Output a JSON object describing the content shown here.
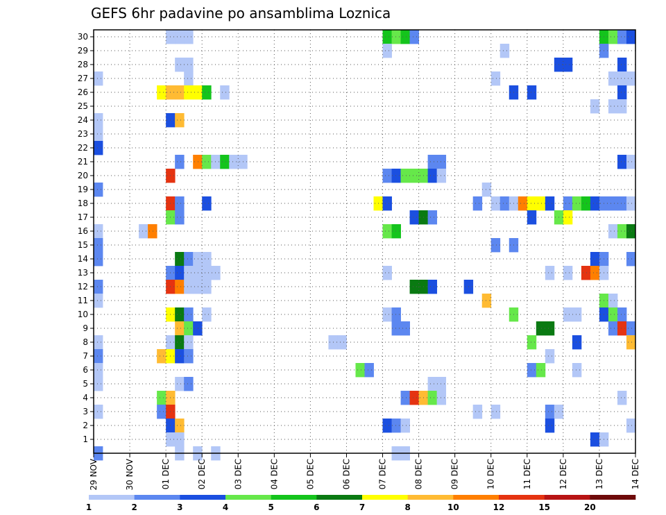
{
  "chart_data": {
    "type": "heatmap",
    "title": "GEFS 6hr padavine po ansamblima Loznica",
    "xlabel": "",
    "ylabel": "",
    "x_ticks": [
      "29 NOV",
      "30 NOV",
      "01 DEC",
      "02 DEC",
      "03 DEC",
      "04 DEC",
      "05 DEC",
      "06 DEC",
      "07 DEC",
      "08 DEC",
      "09 DEC",
      "10 DEC",
      "11 DEC",
      "12 DEC",
      "13 DEC",
      "14 DEC"
    ],
    "y_ticks": [
      "1",
      "2",
      "3",
      "4",
      "5",
      "6",
      "7",
      "8",
      "9",
      "10",
      "11",
      "12",
      "13",
      "14",
      "15",
      "16",
      "17",
      "18",
      "19",
      "20",
      "21",
      "22",
      "23",
      "24",
      "25",
      "26",
      "27",
      "28",
      "29",
      "30"
    ],
    "xlim": [
      0,
      60
    ],
    "ylim": [
      0,
      30
    ],
    "x_unit": "6-hour steps from 29 NOV 00Z",
    "grid": true,
    "colorbar": {
      "labels": [
        "1",
        "2",
        "3",
        "4",
        "5",
        "6",
        "7",
        "8",
        "10",
        "12",
        "15",
        "20"
      ],
      "colors": [
        "#b3c7f7",
        "#5c87f0",
        "#1b4fe0",
        "#66e84a",
        "#14c41c",
        "#0a7a12",
        "#ffff00",
        "#ffbb33",
        "#ff7f00",
        "#e53311",
        "#b81414",
        "#6e0a0a"
      ]
    },
    "cells": [
      [
        30,
        8,
        0
      ],
      [
        30,
        9,
        0
      ],
      [
        30,
        10,
        0
      ],
      [
        30,
        32,
        4
      ],
      [
        30,
        33,
        3
      ],
      [
        30,
        34,
        4
      ],
      [
        30,
        35,
        1
      ],
      [
        30,
        56,
        4
      ],
      [
        30,
        57,
        3
      ],
      [
        30,
        58,
        1
      ],
      [
        30,
        59,
        2
      ],
      [
        29,
        32,
        0
      ],
      [
        29,
        45,
        0
      ],
      [
        29,
        56,
        1
      ],
      [
        28,
        9,
        0
      ],
      [
        28,
        10,
        0
      ],
      [
        28,
        51,
        2
      ],
      [
        28,
        52,
        2
      ],
      [
        28,
        58,
        2
      ],
      [
        27,
        0,
        0
      ],
      [
        27,
        10,
        0
      ],
      [
        27,
        44,
        0
      ],
      [
        27,
        57,
        0
      ],
      [
        27,
        58,
        0
      ],
      [
        27,
        59,
        0
      ],
      [
        26,
        7,
        6
      ],
      [
        26,
        8,
        7
      ],
      [
        26,
        9,
        7
      ],
      [
        26,
        10,
        6
      ],
      [
        26,
        11,
        6
      ],
      [
        26,
        12,
        4
      ],
      [
        26,
        14,
        0
      ],
      [
        26,
        46,
        2
      ],
      [
        26,
        48,
        2
      ],
      [
        26,
        58,
        2
      ],
      [
        25,
        55,
        0
      ],
      [
        25,
        57,
        0
      ],
      [
        25,
        58,
        0
      ],
      [
        24,
        0,
        0
      ],
      [
        24,
        8,
        2
      ],
      [
        24,
        9,
        7
      ],
      [
        23,
        0,
        0
      ],
      [
        22,
        0,
        2
      ],
      [
        21,
        9,
        1
      ],
      [
        21,
        11,
        8
      ],
      [
        21,
        12,
        3
      ],
      [
        21,
        13,
        0
      ],
      [
        21,
        14,
        4
      ],
      [
        21,
        15,
        0
      ],
      [
        21,
        16,
        0
      ],
      [
        21,
        37,
        1
      ],
      [
        21,
        38,
        1
      ],
      [
        21,
        58,
        2
      ],
      [
        21,
        59,
        0
      ],
      [
        20,
        8,
        9
      ],
      [
        20,
        32,
        1
      ],
      [
        20,
        33,
        2
      ],
      [
        20,
        34,
        3
      ],
      [
        20,
        35,
        3
      ],
      [
        20,
        36,
        3
      ],
      [
        20,
        37,
        2
      ],
      [
        20,
        38,
        0
      ],
      [
        19,
        0,
        1
      ],
      [
        19,
        43,
        0
      ],
      [
        18,
        8,
        9
      ],
      [
        18,
        9,
        1
      ],
      [
        18,
        12,
        2
      ],
      [
        18,
        31,
        6
      ],
      [
        18,
        32,
        2
      ],
      [
        18,
        42,
        1
      ],
      [
        18,
        44,
        0
      ],
      [
        18,
        45,
        1
      ],
      [
        18,
        46,
        0
      ],
      [
        18,
        47,
        8
      ],
      [
        18,
        48,
        6
      ],
      [
        18,
        49,
        6
      ],
      [
        18,
        50,
        2
      ],
      [
        18,
        52,
        1
      ],
      [
        18,
        53,
        3
      ],
      [
        18,
        54,
        4
      ],
      [
        18,
        55,
        2
      ],
      [
        18,
        56,
        1
      ],
      [
        18,
        57,
        1
      ],
      [
        18,
        58,
        1
      ],
      [
        18,
        59,
        0
      ],
      [
        17,
        8,
        3
      ],
      [
        17,
        9,
        1
      ],
      [
        17,
        35,
        2
      ],
      [
        17,
        36,
        5
      ],
      [
        17,
        37,
        1
      ],
      [
        17,
        48,
        2
      ],
      [
        17,
        51,
        3
      ],
      [
        17,
        52,
        6
      ],
      [
        16,
        0,
        0
      ],
      [
        16,
        5,
        0
      ],
      [
        16,
        6,
        8
      ],
      [
        16,
        32,
        3
      ],
      [
        16,
        33,
        4
      ],
      [
        16,
        57,
        0
      ],
      [
        16,
        58,
        3
      ],
      [
        16,
        59,
        5
      ],
      [
        15,
        0,
        1
      ],
      [
        15,
        44,
        1
      ],
      [
        15,
        46,
        1
      ],
      [
        14,
        0,
        1
      ],
      [
        14,
        9,
        5
      ],
      [
        14,
        10,
        1
      ],
      [
        14,
        11,
        0
      ],
      [
        14,
        12,
        0
      ],
      [
        14,
        55,
        2
      ],
      [
        14,
        56,
        1
      ],
      [
        14,
        59,
        1
      ],
      [
        13,
        8,
        1
      ],
      [
        13,
        9,
        2
      ],
      [
        13,
        10,
        0
      ],
      [
        13,
        11,
        0
      ],
      [
        13,
        12,
        0
      ],
      [
        13,
        13,
        0
      ],
      [
        13,
        32,
        0
      ],
      [
        13,
        50,
        0
      ],
      [
        13,
        52,
        0
      ],
      [
        13,
        54,
        9
      ],
      [
        13,
        55,
        8
      ],
      [
        13,
        56,
        0
      ],
      [
        12,
        0,
        1
      ],
      [
        12,
        8,
        9
      ],
      [
        12,
        9,
        8
      ],
      [
        12,
        10,
        0
      ],
      [
        12,
        11,
        0
      ],
      [
        12,
        12,
        0
      ],
      [
        12,
        35,
        5
      ],
      [
        12,
        36,
        5
      ],
      [
        12,
        37,
        2
      ],
      [
        12,
        41,
        2
      ],
      [
        11,
        0,
        0
      ],
      [
        11,
        43,
        7
      ],
      [
        11,
        56,
        3
      ],
      [
        11,
        57,
        0
      ],
      [
        10,
        8,
        6
      ],
      [
        10,
        9,
        5
      ],
      [
        10,
        10,
        1
      ],
      [
        10,
        12,
        0
      ],
      [
        10,
        32,
        0
      ],
      [
        10,
        33,
        1
      ],
      [
        10,
        46,
        3
      ],
      [
        10,
        52,
        0
      ],
      [
        10,
        53,
        0
      ],
      [
        10,
        56,
        2
      ],
      [
        10,
        57,
        3
      ],
      [
        10,
        58,
        1
      ],
      [
        9,
        9,
        7
      ],
      [
        9,
        10,
        3
      ],
      [
        9,
        11,
        2
      ],
      [
        9,
        33,
        1
      ],
      [
        9,
        34,
        1
      ],
      [
        9,
        49,
        5
      ],
      [
        9,
        50,
        5
      ],
      [
        9,
        57,
        1
      ],
      [
        9,
        58,
        9
      ],
      [
        9,
        59,
        1
      ],
      [
        8,
        0,
        0
      ],
      [
        8,
        8,
        0
      ],
      [
        8,
        9,
        5
      ],
      [
        8,
        10,
        0
      ],
      [
        8,
        26,
        0
      ],
      [
        8,
        27,
        0
      ],
      [
        8,
        48,
        3
      ],
      [
        8,
        53,
        2
      ],
      [
        8,
        59,
        7
      ],
      [
        7,
        0,
        1
      ],
      [
        7,
        7,
        7
      ],
      [
        7,
        8,
        6
      ],
      [
        7,
        9,
        2
      ],
      [
        7,
        10,
        1
      ],
      [
        7,
        50,
        0
      ],
      [
        6,
        0,
        0
      ],
      [
        6,
        29,
        3
      ],
      [
        6,
        30,
        1
      ],
      [
        6,
        48,
        1
      ],
      [
        6,
        49,
        3
      ],
      [
        6,
        53,
        0
      ],
      [
        5,
        0,
        0
      ],
      [
        5,
        9,
        0
      ],
      [
        5,
        10,
        1
      ],
      [
        5,
        37,
        0
      ],
      [
        5,
        38,
        0
      ],
      [
        4,
        7,
        3
      ],
      [
        4,
        8,
        7
      ],
      [
        4,
        34,
        1
      ],
      [
        4,
        35,
        9
      ],
      [
        4,
        36,
        7
      ],
      [
        4,
        37,
        3
      ],
      [
        4,
        38,
        0
      ],
      [
        4,
        58,
        0
      ],
      [
        3,
        0,
        0
      ],
      [
        3,
        7,
        1
      ],
      [
        3,
        8,
        9
      ],
      [
        3,
        42,
        0
      ],
      [
        3,
        44,
        0
      ],
      [
        3,
        50,
        1
      ],
      [
        3,
        51,
        0
      ],
      [
        2,
        8,
        2
      ],
      [
        2,
        9,
        7
      ],
      [
        2,
        32,
        2
      ],
      [
        2,
        33,
        1
      ],
      [
        2,
        34,
        0
      ],
      [
        2,
        50,
        2
      ],
      [
        2,
        59,
        0
      ],
      [
        1,
        8,
        0
      ],
      [
        1,
        9,
        0
      ],
      [
        1,
        55,
        2
      ],
      [
        1,
        56,
        0
      ],
      [
        0,
        0,
        1
      ],
      [
        0,
        9,
        0
      ],
      [
        0,
        11,
        0
      ],
      [
        0,
        13,
        0
      ],
      [
        0,
        33,
        0
      ],
      [
        0,
        34,
        0
      ]
    ]
  }
}
